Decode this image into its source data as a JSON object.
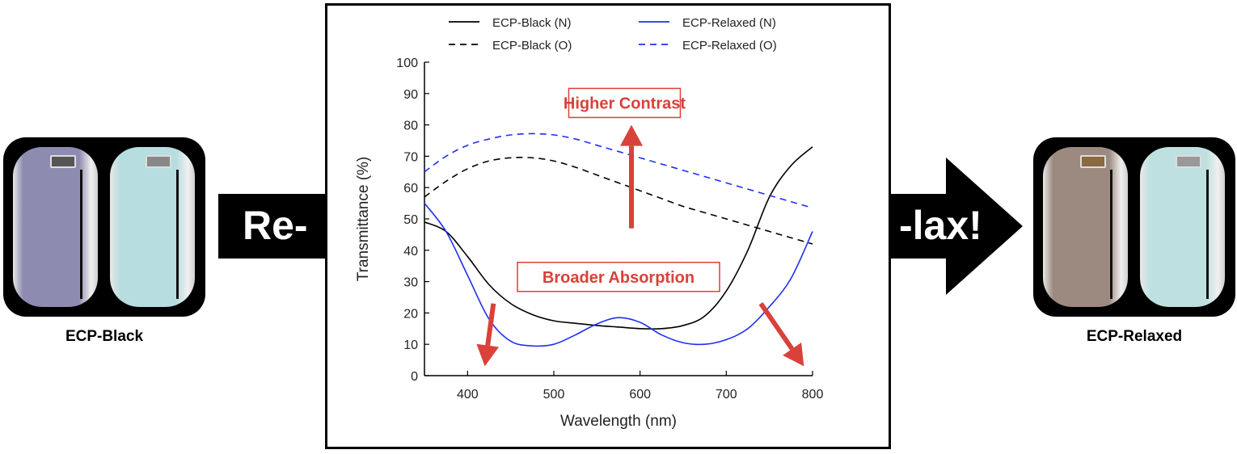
{
  "left_panel": {
    "caption": "ECP-Black",
    "vial_colors": [
      "#8d8cb0",
      "#b8dde0"
    ]
  },
  "right_panel": {
    "caption": "ECP-Relaxed",
    "vial_colors": [
      "#9c8a80",
      "#bfe0e0"
    ]
  },
  "arrow_left_text": "Re-",
  "arrow_right_text": "-lax!",
  "annotations": {
    "higher_contrast": "Higher Contrast",
    "broader_absorption": "Broader Absorption",
    "annotation_color": "#d9413b"
  },
  "chart_data": {
    "type": "line",
    "xlabel": "Wavelength (nm)",
    "ylabel": "Transmittance (%)",
    "xlim": [
      350,
      800
    ],
    "ylim": [
      0,
      100
    ],
    "xticks": [
      400,
      500,
      600,
      700,
      800
    ],
    "yticks": [
      0,
      10,
      20,
      30,
      40,
      50,
      60,
      70,
      80,
      90,
      100
    ],
    "grid": false,
    "legend_position": "top",
    "series": [
      {
        "name": "ECP-Black (N)",
        "color": "#000000",
        "dash": false,
        "x": [
          350,
          375,
          400,
          425,
          450,
          475,
          500,
          525,
          550,
          575,
          600,
          625,
          650,
          675,
          700,
          725,
          750,
          775,
          800
        ],
        "y": [
          49,
          46,
          38,
          29,
          23,
          19.5,
          17.5,
          16.7,
          16,
          15.5,
          15,
          15,
          16,
          19,
          27,
          40,
          57,
          67,
          73
        ]
      },
      {
        "name": "ECP-Relaxed (N)",
        "color": "#1f2ff0",
        "dash": false,
        "x": [
          350,
          375,
          400,
          425,
          450,
          475,
          500,
          525,
          550,
          575,
          600,
          625,
          650,
          675,
          700,
          725,
          750,
          775,
          800
        ],
        "y": [
          55,
          46,
          32,
          18,
          11,
          9.5,
          10,
          13,
          16.5,
          18.5,
          17,
          13,
          10.5,
          10,
          11.5,
          15,
          22,
          31,
          46
        ]
      },
      {
        "name": "ECP-Black (O)",
        "color": "#000000",
        "dash": true,
        "x": [
          350,
          375,
          400,
          425,
          450,
          475,
          500,
          525,
          550,
          575,
          600,
          625,
          650,
          675,
          700,
          725,
          750,
          775,
          800
        ],
        "y": [
          57,
          62,
          66,
          68.5,
          69.5,
          69.5,
          68.5,
          66.5,
          64,
          61.5,
          59,
          56.5,
          54,
          52,
          50,
          48,
          46,
          44,
          42
        ]
      },
      {
        "name": "ECP-Relaxed (O)",
        "color": "#1f2ff0",
        "dash": true,
        "x": [
          350,
          375,
          400,
          425,
          450,
          475,
          500,
          525,
          550,
          575,
          600,
          625,
          650,
          675,
          700,
          725,
          750,
          775,
          800
        ],
        "y": [
          65,
          70,
          73.5,
          75.5,
          76.8,
          77.2,
          76.8,
          75.5,
          73.5,
          71.5,
          69.5,
          67.5,
          65.5,
          63.5,
          61.5,
          59.5,
          57.5,
          55.5,
          53.5
        ]
      }
    ]
  }
}
